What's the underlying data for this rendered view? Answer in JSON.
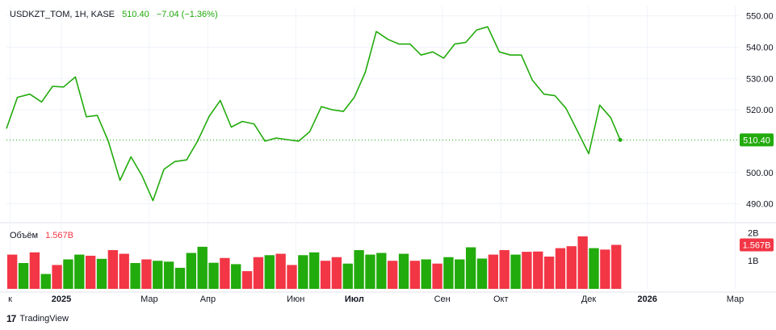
{
  "legend": {
    "symbol": "USDKZT_TOM, 1H, KASE",
    "price": "510.40",
    "change": "−7.04 (−1.36%)"
  },
  "volume_legend": {
    "label": "Объём",
    "value": "1.567B"
  },
  "brand": {
    "logo": "17",
    "name": "TradingView"
  },
  "colors": {
    "line": "#22ab0c",
    "vol_up": "#22ab0c",
    "vol_down": "#f23645",
    "price_badge": "#22ab0c",
    "vol_badge": "#f23645",
    "grid": "#f0f3fa",
    "axis_text": "#131722"
  },
  "chart_data": [
    {
      "type": "line",
      "ylim": [
        485,
        553
      ],
      "y_ticks": [
        490,
        500,
        510,
        520,
        530,
        540,
        550
      ],
      "y_tick_labels": [
        "490.00",
        "500.00",
        "510.00",
        "520.00",
        "530.00",
        "540.00",
        "550.00"
      ],
      "current_value": 510.4,
      "current_label": "510.40",
      "xlim": [
        0,
        100
      ],
      "x_ticks": [
        0.5,
        7.5,
        19.5,
        27.5,
        39.5,
        47.5,
        59.5,
        67.5,
        79.5,
        87.5,
        99.5
      ],
      "x_tick_labels": [
        "к",
        "2025",
        "Мар",
        "Апр",
        "Июн",
        "Июл",
        "Сен",
        "Окт",
        "Дек",
        "2026",
        "Мар"
      ],
      "x_tick_bold": [
        false,
        true,
        false,
        false,
        false,
        true,
        false,
        false,
        false,
        true,
        false
      ],
      "x": [
        0,
        1.5,
        3.2,
        4.8,
        6.3,
        7.8,
        9.4,
        10.9,
        12.4,
        13.9,
        15.5,
        17.0,
        18.5,
        20.0,
        21.5,
        23.0,
        24.6,
        26.1,
        27.7,
        29.2,
        30.7,
        32.2,
        33.8,
        35.3,
        36.8,
        38.3,
        39.9,
        41.4,
        43.0,
        44.5,
        46.0,
        47.5,
        49.0,
        50.5,
        52.1,
        53.6,
        55.1,
        56.6,
        58.2,
        59.7,
        61.2,
        62.7,
        64.2,
        65.7,
        67.3,
        68.8,
        70.3,
        71.8,
        73.4,
        74.9,
        76.4,
        77.9,
        79.5,
        81.0,
        82.5,
        83.8
      ],
      "y": [
        514,
        524,
        525,
        522.5,
        527.5,
        527.3,
        530.5,
        517.8,
        518.2,
        510,
        497.5,
        505,
        499,
        491,
        501,
        503.5,
        504,
        510,
        518,
        523,
        514.5,
        516.3,
        515.5,
        510,
        511,
        510.5,
        510,
        513,
        521,
        520,
        519.5,
        524,
        532,
        545,
        542.5,
        541,
        541,
        537.5,
        538.5,
        536.5,
        541,
        541.5,
        545.5,
        546.5,
        538.5,
        537.5,
        537.5,
        529.5,
        525,
        524.5,
        520.5,
        513.5,
        506,
        521.5,
        517.5,
        510.4
      ]
    },
    {
      "type": "bar",
      "title": "Объём",
      "ylim": [
        0,
        2.3
      ],
      "y_ticks": [
        1,
        2
      ],
      "y_tick_labels": [
        "1B",
        "2B"
      ],
      "current_label": "1.567B",
      "current_value": 1.567,
      "values": [
        1.22,
        0.92,
        1.3,
        0.53,
        0.85,
        1.05,
        1.22,
        1.18,
        1.07,
        1.38,
        1.25,
        0.92,
        1.05,
        1.0,
        0.97,
        0.75,
        1.28,
        1.5,
        0.93,
        1.1,
        0.88,
        0.63,
        1.13,
        1.2,
        1.25,
        0.85,
        1.2,
        1.3,
        1.0,
        1.13,
        0.9,
        1.38,
        1.22,
        1.28,
        1.0,
        1.25,
        1.0,
        1.05,
        0.9,
        1.13,
        1.05,
        1.48,
        1.08,
        1.22,
        1.38,
        1.22,
        1.32,
        1.33,
        1.15,
        1.45,
        1.52,
        1.87,
        1.45,
        1.4,
        1.567
      ],
      "directions": [
        "down",
        "up",
        "down",
        "up",
        "down",
        "up",
        "up",
        "down",
        "up",
        "down",
        "down",
        "up",
        "down",
        "up",
        "up",
        "up",
        "up",
        "up",
        "up",
        "down",
        "up",
        "down",
        "down",
        "up",
        "down",
        "down",
        "up",
        "up",
        "down",
        "down",
        "up",
        "up",
        "up",
        "up",
        "down",
        "up",
        "down",
        "up",
        "down",
        "up",
        "up",
        "up",
        "up",
        "down",
        "down",
        "up",
        "down",
        "down",
        "down",
        "down",
        "down",
        "down",
        "up",
        "down",
        "down"
      ]
    }
  ]
}
